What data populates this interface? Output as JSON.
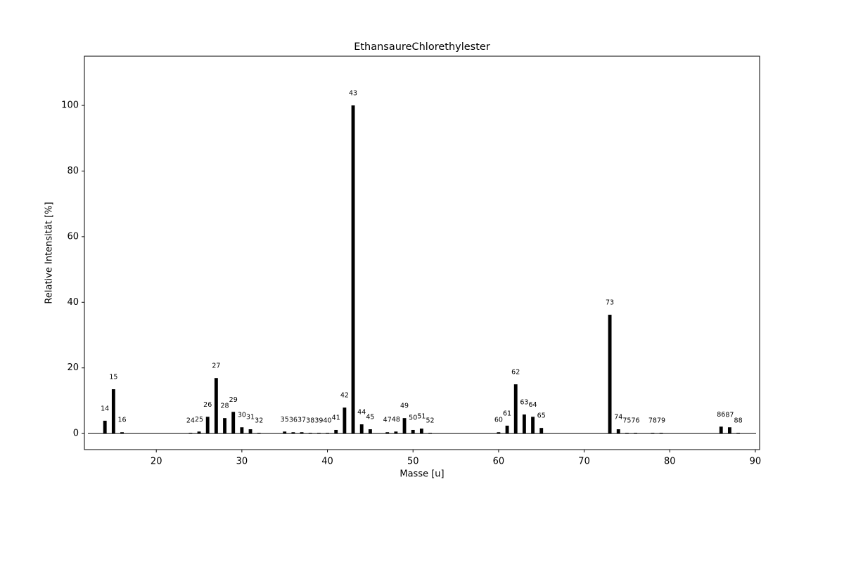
{
  "chart_data": {
    "type": "bar",
    "title": "EthansaureChlorethylester",
    "x_label": "Masse [u]",
    "y_label": "Relative Intensität [%]",
    "x": [
      14,
      15,
      16,
      24,
      25,
      26,
      27,
      28,
      29,
      30,
      31,
      32,
      35,
      36,
      37,
      38,
      39,
      40,
      41,
      42,
      43,
      44,
      45,
      47,
      48,
      49,
      50,
      51,
      52,
      60,
      61,
      62,
      63,
      64,
      65,
      73,
      74,
      75,
      76,
      78,
      79,
      86,
      87,
      88
    ],
    "values": [
      3.9,
      13.5,
      0.4,
      0.2,
      0.6,
      5.1,
      16.9,
      4.7,
      6.6,
      1.9,
      1.3,
      0.2,
      0.6,
      0.4,
      0.4,
      0.2,
      0.2,
      0.2,
      1.1,
      7.9,
      100,
      2.8,
      1.3,
      0.4,
      0.6,
      4.7,
      1.1,
      1.5,
      0.2,
      0.4,
      2.4,
      15,
      5.8,
      5.1,
      1.7,
      36.2,
      1.3,
      0.2,
      0.2,
      0.2,
      0.2,
      2.1,
      1.9,
      0.2
    ],
    "color": "#000000",
    "xlim": [
      11.6,
      90.5
    ],
    "ylim": [
      -4.9,
      115
    ],
    "xticks": [
      20,
      30,
      40,
      50,
      60,
      70,
      80,
      90
    ],
    "yticks": [
      0,
      20,
      40,
      60,
      80,
      100
    ]
  }
}
